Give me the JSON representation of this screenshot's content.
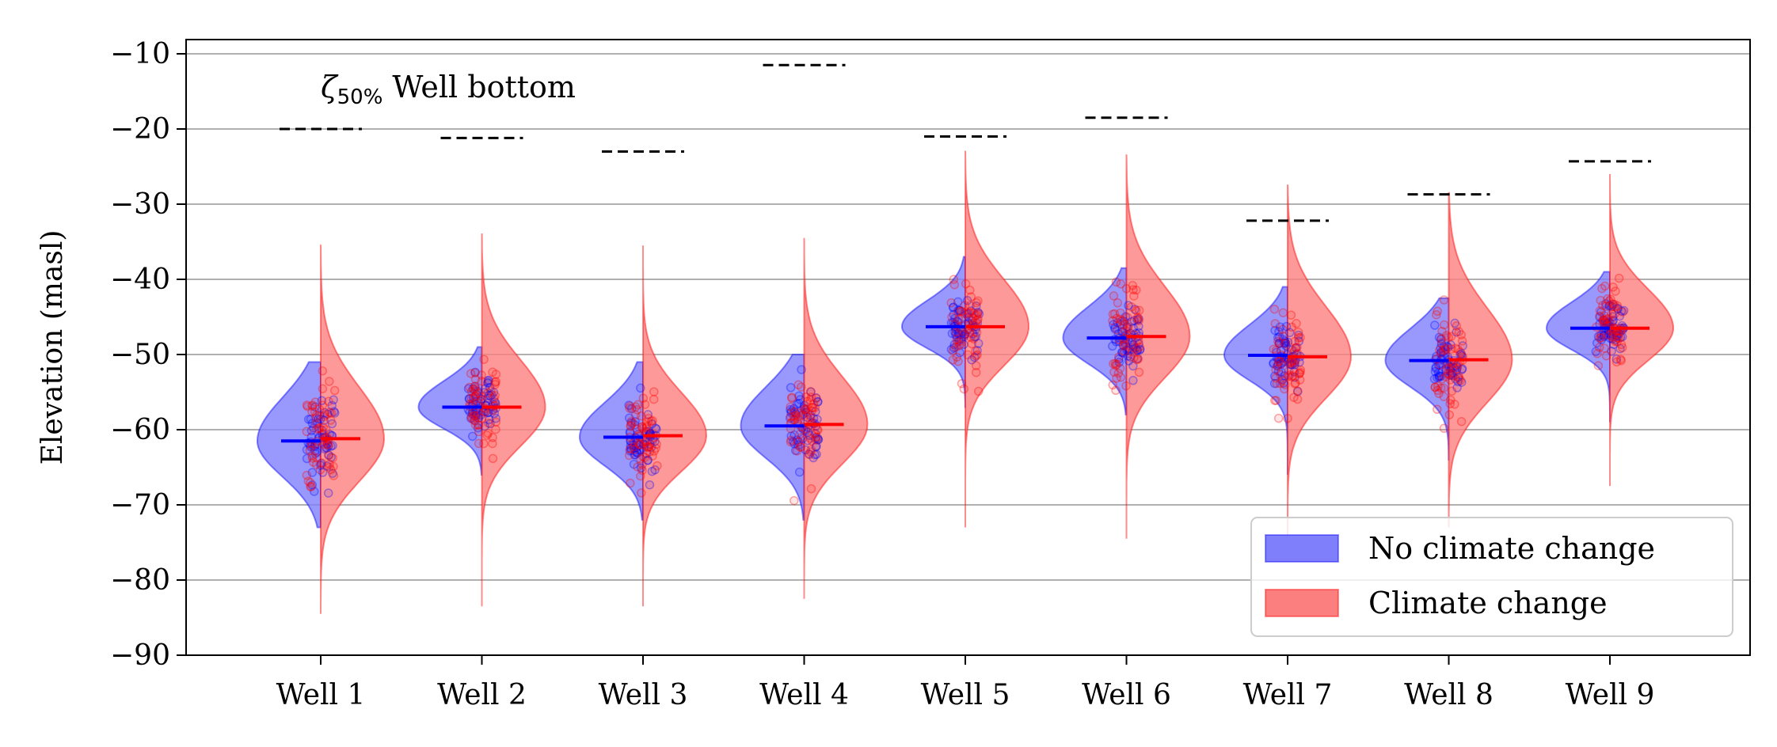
{
  "chart_data": {
    "type": "violin",
    "ylabel": "Elevation (masl)",
    "ylim": [
      -90,
      -8
    ],
    "yticks": [
      -90,
      -80,
      -70,
      -60,
      -50,
      -40,
      -30,
      -20,
      -10
    ],
    "ytick_labels": [
      "−90",
      "−80",
      "−70",
      "−60",
      "−50",
      "−40",
      "−30",
      "−20",
      "−10"
    ],
    "grid": "y",
    "legend_placement": "lower-right",
    "annotation": {
      "symbol": "ζ",
      "subscript": "50%",
      "text": "Well bottom"
    },
    "categories": [
      "Well 1",
      "Well 2",
      "Well 3",
      "Well 4",
      "Well 5",
      "Well 6",
      "Well 7",
      "Well 8",
      "Well 9"
    ],
    "well_bottom": [
      -20.0,
      -21.2,
      -23.0,
      -11.5,
      -21.0,
      -18.5,
      -32.2,
      -28.7,
      -24.3
    ],
    "series": [
      {
        "name": "No climate change",
        "color": "#0000ff",
        "fill": "#7f7ffc",
        "side": "left",
        "median": [
          -61.5,
          -57.0,
          -61.0,
          -59.5,
          -46.3,
          -47.8,
          -50.1,
          -50.8,
          -46.5
        ],
        "min": [
          -73.0,
          -66.0,
          -72.0,
          -72.0,
          -57.0,
          -58.0,
          -66.0,
          -64.0,
          -59.0
        ],
        "max": [
          -51.0,
          -49.0,
          -51.0,
          -50.0,
          -37.0,
          -38.5,
          -41.0,
          -42.5,
          -39.0
        ],
        "spread": [
          5.0,
          3.0,
          4.0,
          4.5,
          3.0,
          3.6,
          3.5,
          3.7,
          3.0
        ]
      },
      {
        "name": "Climate change",
        "color": "#ff0000",
        "fill": "#fc7f7f",
        "side": "right",
        "median": [
          -61.2,
          -57.0,
          -60.8,
          -59.3,
          -46.3,
          -47.6,
          -50.3,
          -50.7,
          -46.5
        ],
        "min": [
          -84.5,
          -83.5,
          -83.5,
          -82.5,
          -73.0,
          -74.5,
          -74.0,
          -73.0,
          -67.5
        ],
        "max": [
          -35.5,
          -34.0,
          -35.5,
          -34.5,
          -23.0,
          -23.5,
          -27.5,
          -28.5,
          -26.0
        ],
        "spread": [
          6.0,
          5.5,
          5.0,
          5.5,
          5.5,
          5.8,
          5.8,
          6.0,
          4.5
        ]
      }
    ]
  }
}
